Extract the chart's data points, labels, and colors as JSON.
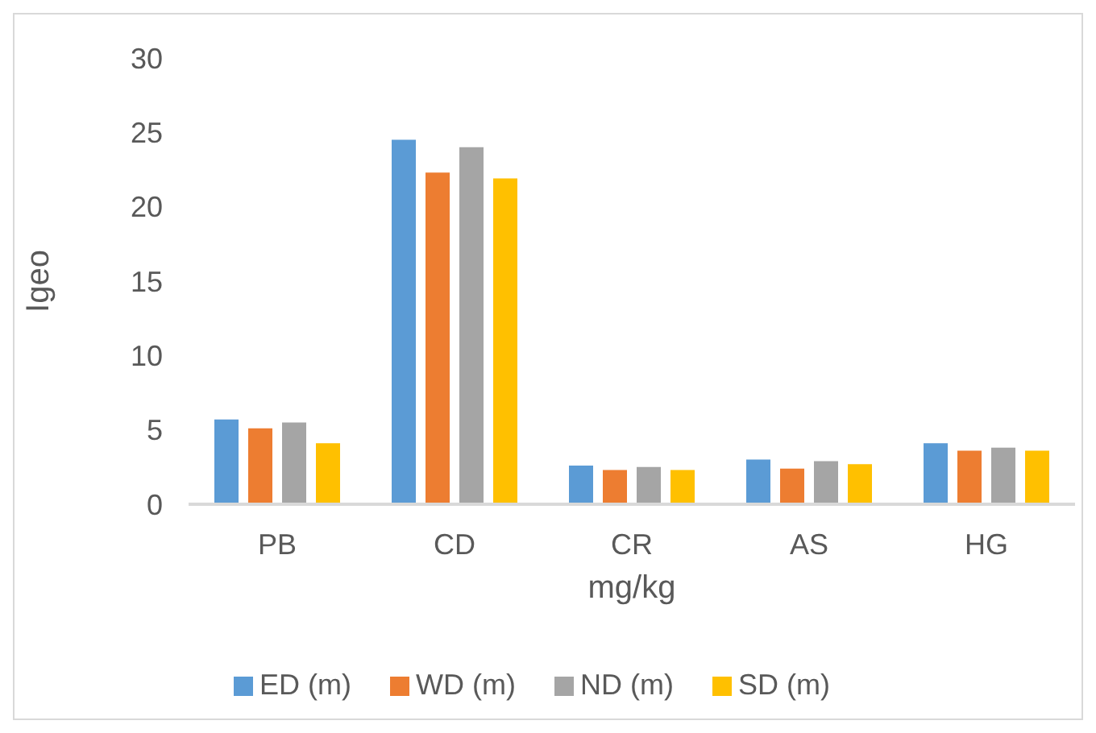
{
  "chart_data": {
    "type": "bar",
    "xlabel": "mg/kg",
    "ylabel": "Igeo",
    "categories": [
      "PB",
      "CD",
      "CR",
      "AS",
      "HG"
    ],
    "series": [
      {
        "name": "ED (m)",
        "color": "#5b9bd5",
        "values": [
          5.7,
          24.5,
          2.6,
          3.0,
          4.1
        ]
      },
      {
        "name": "WD (m)",
        "color": "#ed7d31",
        "values": [
          5.1,
          22.3,
          2.3,
          2.4,
          3.6
        ]
      },
      {
        "name": "ND (m)",
        "color": "#a5a5a5",
        "values": [
          5.5,
          24.0,
          2.5,
          2.9,
          3.8
        ]
      },
      {
        "name": "SD (m)",
        "color": "#ffc000",
        "values": [
          4.1,
          21.9,
          2.3,
          2.7,
          3.6
        ]
      }
    ],
    "ylim": [
      0,
      30
    ],
    "yticks": [
      0,
      5,
      10,
      15,
      20,
      25,
      30
    ],
    "grid": false,
    "legend": "bottom"
  }
}
